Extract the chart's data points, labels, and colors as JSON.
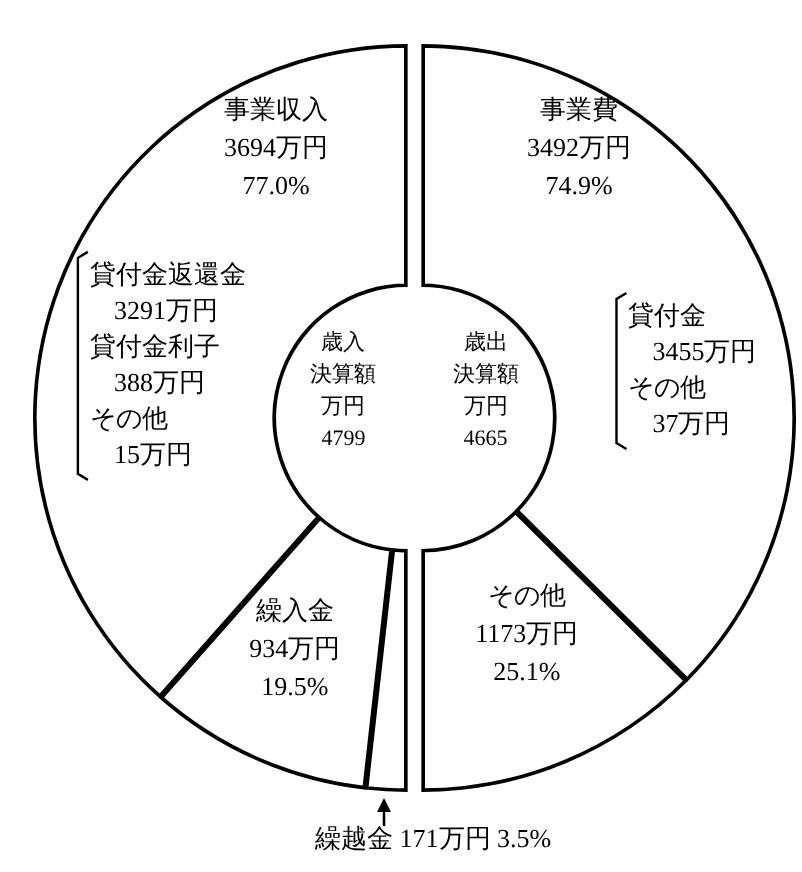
{
  "chart_data": [
    {
      "type": "donut",
      "categories": [
        "繰越金",
        "繰入金",
        "事業収入"
      ],
      "values": [
        171,
        934,
        3694
      ],
      "colors": [
        "#ffffff",
        "#ffffff",
        "#ffffff"
      ],
      "value_labels": [
        "171万円 3.5%",
        "934万円\n19.5%",
        "3694万円\n77.0%"
      ],
      "annotations": [
        "歳入",
        "決算額",
        "万円",
        "4799",
        "貸付金返還金",
        "3291万円",
        "貸付金利子",
        "388万円",
        "その他",
        "15万円"
      ]
    },
    {
      "type": "donut",
      "categories": [
        "事業費",
        "その他"
      ],
      "values": [
        3492,
        1173
      ],
      "colors": [
        "#ffffff",
        "#ffffff"
      ],
      "value_labels": [
        "3492万円\n74.9%",
        "1173万円\n25.1%"
      ],
      "annotations": [
        "歳出",
        "決算額",
        "万円",
        "4665",
        "貸付金",
        "3455万円",
        "その他",
        "37万円"
      ]
    }
  ]
}
